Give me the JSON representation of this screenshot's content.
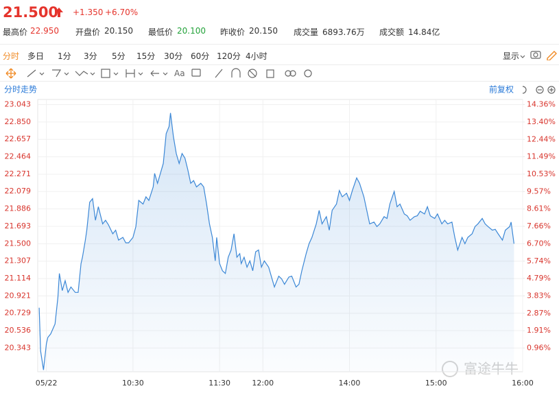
{
  "header": {
    "price": "21.500",
    "change": "+1.350",
    "change_pct": "+6.70%",
    "stats": [
      {
        "label": "最高价",
        "value": "22.950"
      },
      {
        "label": "开盘价",
        "value": "20.150"
      },
      {
        "label": "最低价",
        "value": "20.100"
      },
      {
        "label": "昨收价",
        "value": "20.150"
      },
      {
        "label": "成交量",
        "value": "6893.76万"
      },
      {
        "label": "成交额",
        "value": "14.84亿"
      }
    ]
  },
  "tabs": [
    "分时",
    "多日",
    "1分",
    "3分",
    "5分",
    "15分",
    "30分",
    "60分",
    "120分",
    "4小时"
  ],
  "display": "显示",
  "toolbar_text": "Aa",
  "chart_data": {
    "type": "line",
    "title": "分时走势",
    "adjust": "前复权",
    "watermark": "富途牛牛",
    "x": [
      -5,
      -4,
      -2,
      0,
      1,
      3,
      6,
      8,
      9,
      11,
      13,
      15,
      17,
      20,
      22,
      24,
      25,
      27,
      28,
      30,
      32,
      34,
      36,
      39,
      41,
      43,
      46,
      48,
      50,
      53,
      55,
      57,
      60,
      62,
      64,
      67,
      69,
      71,
      74,
      75,
      77,
      79,
      81,
      83,
      85,
      86,
      88,
      90,
      92,
      94,
      96,
      98,
      100,
      102,
      104,
      107,
      109,
      111,
      113,
      115,
      117,
      118,
      120,
      122,
      124,
      126,
      128,
      130,
      132,
      134,
      135,
      137,
      139,
      141,
      143,
      145,
      147,
      149,
      151,
      154,
      156,
      158,
      161,
      163,
      165,
      168,
      170,
      173,
      175,
      177,
      180,
      182,
      184,
      187,
      189,
      191,
      194,
      196,
      198,
      201,
      203,
      205,
      208,
      210,
      212,
      215,
      217,
      220,
      222,
      224,
      227,
      229,
      231,
      234,
      236,
      238,
      241,
      243,
      245,
      248,
      250,
      252,
      255,
      257,
      259,
      262,
      264,
      266,
      269,
      271,
      274,
      276,
      278,
      281,
      283,
      285,
      288,
      290,
      292,
      295,
      297,
      299,
      302,
      304,
      306,
      309,
      311,
      313,
      316,
      318,
      321,
      322,
      324
    ],
    "series": [
      {
        "color": "#3b87d6",
        "values": [
          20.79,
          20.31,
          20.1,
          20.39,
          20.46,
          20.5,
          20.61,
          20.91,
          21.17,
          20.98,
          21.09,
          20.96,
          21.02,
          20.96,
          20.96,
          21.28,
          21.35,
          21.54,
          21.65,
          21.96,
          22.0,
          21.76,
          21.91,
          21.72,
          21.76,
          21.71,
          21.61,
          21.65,
          21.54,
          21.57,
          21.51,
          21.51,
          21.57,
          21.69,
          21.98,
          21.94,
          22.02,
          21.98,
          22.13,
          22.28,
          22.17,
          22.28,
          22.39,
          22.72,
          22.8,
          22.95,
          22.69,
          22.5,
          22.39,
          22.5,
          22.45,
          22.32,
          22.17,
          22.2,
          22.13,
          22.17,
          22.13,
          21.94,
          21.72,
          21.57,
          21.31,
          21.57,
          21.28,
          21.2,
          21.17,
          21.35,
          21.43,
          21.61,
          21.35,
          21.39,
          21.28,
          21.35,
          21.24,
          21.31,
          21.2,
          21.41,
          21.43,
          21.24,
          21.31,
          21.24,
          21.13,
          21.02,
          21.14,
          21.11,
          21.05,
          21.13,
          21.14,
          21.02,
          21.05,
          21.2,
          21.39,
          21.5,
          21.57,
          21.72,
          21.87,
          21.72,
          21.8,
          21.65,
          21.87,
          21.94,
          22.09,
          22.02,
          22.06,
          21.98,
          22.09,
          22.23,
          22.17,
          22.02,
          21.87,
          21.72,
          21.74,
          21.69,
          21.72,
          21.8,
          21.78,
          21.94,
          22.08,
          21.91,
          21.94,
          21.83,
          21.81,
          21.76,
          21.8,
          21.81,
          21.86,
          21.83,
          21.91,
          21.81,
          21.78,
          21.83,
          21.72,
          21.76,
          21.72,
          21.74,
          21.57,
          21.43,
          21.57,
          21.5,
          21.57,
          21.61,
          21.69,
          21.72,
          21.78,
          21.72,
          21.69,
          21.65,
          21.66,
          21.61,
          21.54,
          21.65,
          21.69,
          21.74,
          21.5
        ]
      }
    ],
    "xlim": [
      -6,
      330
    ],
    "xticks": [
      {
        "value": 0,
        "label": "05/22"
      },
      {
        "value": 60,
        "label": "10:30"
      },
      {
        "value": 120,
        "label": "11:30"
      },
      {
        "value": 150,
        "label": "12:00"
      },
      {
        "value": 210,
        "label": "14:00"
      },
      {
        "value": 270,
        "label": "15:00"
      },
      {
        "value": 330,
        "label": "16:00"
      }
    ],
    "ylim": [
      20.08,
      23.1
    ],
    "yticks": [
      23.043,
      {
        "value": 22.85,
        "label": "22.850"
      },
      22.657,
      22.464,
      22.271,
      22.079,
      21.886,
      21.693,
      {
        "value": 21.5,
        "label": "21.500"
      },
      21.307,
      21.114,
      20.921,
      20.729,
      20.536,
      20.343
    ],
    "y2lim": [
      -0.347,
      14.64
    ],
    "y2ticks": [
      {
        "value": 14.36,
        "label": "14.36%"
      },
      {
        "value": 13.4,
        "label": "13.40%"
      },
      {
        "value": 12.44,
        "label": "12.44%"
      },
      {
        "value": 11.49,
        "label": "11.49%"
      },
      {
        "value": 10.53,
        "label": "10.53%"
      },
      {
        "value": 9.57,
        "label": "9.57%"
      },
      {
        "value": 8.61,
        "label": "8.61%"
      },
      {
        "value": 7.66,
        "label": "7.66%"
      },
      {
        "value": 6.7,
        "label": "6.70%"
      },
      {
        "value": 5.74,
        "label": "5.74%"
      },
      {
        "value": 4.79,
        "label": "4.79%"
      },
      {
        "value": 3.83,
        "label": "3.83%"
      },
      {
        "value": 2.87,
        "label": "2.87%"
      },
      {
        "value": 1.91,
        "label": "1.91%"
      },
      {
        "value": 0.96,
        "label": "0.96%"
      }
    ],
    "grid": true
  }
}
